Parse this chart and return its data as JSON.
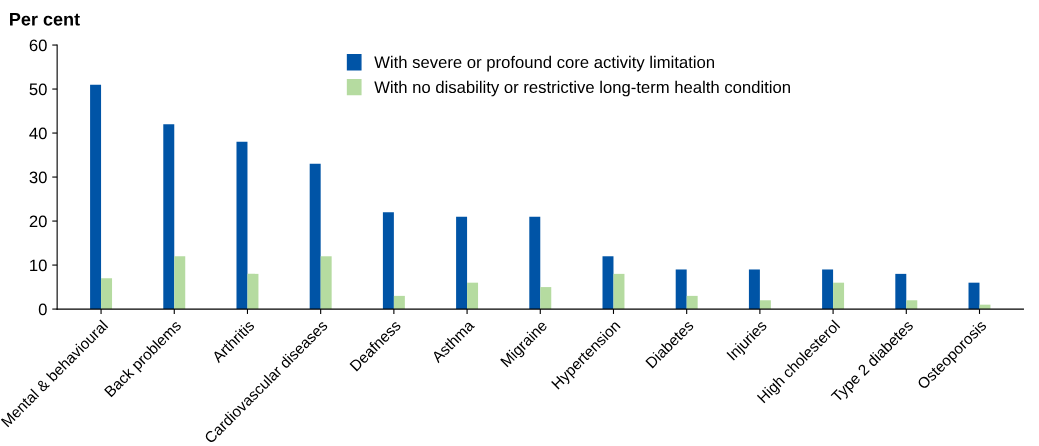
{
  "chart_data": {
    "type": "bar",
    "ylabel": "Per cent",
    "categories": [
      "Mental & behavioural",
      "Back problems",
      "Arthritis",
      "Cardiovascular diseases",
      "Deafness",
      "Asthma",
      "Migraine",
      "Hypertension",
      "Diabetes",
      "Injuries",
      "High cholesterol",
      "Type 2 diabetes",
      "Osteoporosis"
    ],
    "series": [
      {
        "name": "With severe or profound core activity limitation",
        "color": "#0054a6",
        "values": [
          51,
          42,
          38,
          33,
          22,
          21,
          21,
          12,
          9,
          9,
          9,
          8,
          6
        ]
      },
      {
        "name": "With no disability or restrictive long-term health condition",
        "color": "#b5dba0",
        "values": [
          7,
          12,
          8,
          12,
          3,
          6,
          5,
          8,
          3,
          2,
          6,
          2,
          1
        ]
      }
    ],
    "ylim": [
      0,
      60
    ],
    "yticks": [
      0,
      10,
      20,
      30,
      40,
      50,
      60
    ],
    "grid": false,
    "legend": "top"
  }
}
